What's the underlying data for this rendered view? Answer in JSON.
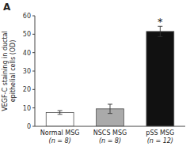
{
  "chart_data": {
    "type": "bar",
    "title": "A",
    "categories": [
      "Normal MSG\n(n = 8)",
      "NSCS MSG\n(n = 8)",
      "pSS MSG\n(n = 12)"
    ],
    "values": [
      7.5,
      9.5,
      51.5
    ],
    "errors": [
      1.0,
      2.5,
      2.8
    ],
    "colors": [
      "#ffffff",
      "#aaaaaa",
      "#111111"
    ],
    "ylabel": "VEGF-C staining in ductal\nepithelial cells (OD)",
    "ylim": [
      0,
      60
    ],
    "yticks": [
      0,
      10,
      20,
      30,
      40,
      50,
      60
    ],
    "annotations": [
      {
        "text": "*",
        "category": "pSS MSG\n(n = 12)"
      }
    ],
    "grid": false
  }
}
